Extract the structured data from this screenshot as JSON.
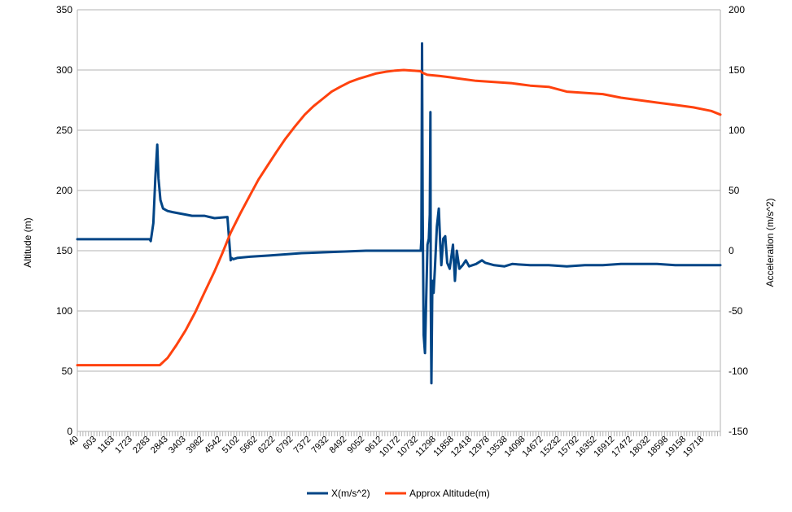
{
  "chart_data": {
    "type": "line",
    "title": "",
    "ylabel_left": "Altitude (m)",
    "ylabel_right": "Acceleration (m/s^2)",
    "ylim_left": [
      0,
      350
    ],
    "ylim_right": [
      -150,
      200
    ],
    "yticks_left": [
      "0",
      "50",
      "100",
      "150",
      "200",
      "250",
      "300",
      "350"
    ],
    "yticks_right": [
      "-150",
      "-100",
      "-50",
      "0",
      "50",
      "100",
      "150",
      "200"
    ],
    "x_tick_labels": [
      "40",
      "603",
      "1163",
      "1723",
      "2283",
      "2843",
      "3403",
      "3982",
      "4542",
      "5102",
      "5662",
      "6222",
      "6792",
      "7372",
      "7932",
      "8492",
      "9052",
      "9612",
      "10172",
      "10732",
      "11298",
      "11858",
      "12418",
      "12978",
      "13538",
      "14098",
      "14672",
      "15232",
      "15792",
      "16352",
      "16912",
      "17472",
      "18032",
      "18598",
      "19158",
      "19718"
    ],
    "xlim": [
      40,
      20000
    ],
    "grid": true,
    "legend_position": "bottom",
    "colors": {
      "accel": "#004586",
      "altitude": "#ff420e",
      "grid": "#b3b3b3",
      "axis": "#b3b3b3"
    },
    "series": [
      {
        "name": "X(m/s^2)",
        "axis": "right",
        "x": [
          40,
          1500,
          2200,
          2283,
          2320,
          2400,
          2460,
          2520,
          2560,
          2620,
          2700,
          2843,
          3000,
          3200,
          3403,
          3600,
          3982,
          4300,
          4700,
          4800,
          4830,
          4880,
          5000,
          5400,
          6000,
          7000,
          8000,
          9000,
          10000,
          10700,
          10720,
          10740,
          10760,
          10790,
          10830,
          10870,
          10910,
          10950,
          10980,
          11000,
          11010,
          11030,
          11060,
          11100,
          11140,
          11200,
          11260,
          11300,
          11340,
          11400,
          11460,
          11520,
          11600,
          11700,
          11760,
          11820,
          11900,
          12000,
          12100,
          12200,
          12418,
          12600,
          12700,
          12978,
          13300,
          13538,
          14098,
          14672,
          15232,
          15792,
          16352,
          16912,
          17472,
          18032,
          18598,
          19158,
          19718,
          20000
        ],
        "y": [
          9.5,
          9.5,
          9.5,
          9.5,
          8,
          23,
          60,
          88,
          60,
          42,
          35,
          33,
          32,
          31,
          30,
          29,
          29,
          27,
          28,
          -8,
          -6,
          -7,
          -6,
          -5,
          -4,
          -2,
          -1,
          0,
          0,
          0,
          10,
          172,
          30,
          -70,
          -85,
          -40,
          5,
          10,
          30,
          115,
          -40,
          -110,
          -25,
          -35,
          -15,
          20,
          35,
          8,
          -12,
          10,
          12,
          -10,
          -15,
          5,
          -25,
          0,
          -15,
          -12,
          -8,
          -13,
          -11,
          -8,
          -10,
          -12,
          -13,
          -11,
          -12,
          -12,
          -13,
          -12,
          -12,
          -11,
          -11,
          -11,
          -12,
          -12,
          -12,
          -12
        ]
      },
      {
        "name": "Approx Altitude(m)",
        "axis": "left",
        "x": [
          40,
          1000,
          2000,
          2600,
          2843,
          3100,
          3403,
          3700,
          3982,
          4300,
          4542,
          4800,
          5102,
          5400,
          5662,
          6000,
          6222,
          6500,
          6792,
          7100,
          7372,
          7700,
          7932,
          8200,
          8492,
          8800,
          9052,
          9300,
          9612,
          9900,
          10172,
          10450,
          10700,
          10732,
          10900,
          11298,
          11600,
          11858,
          12418,
          12978,
          13538,
          14098,
          14672,
          15232,
          15792,
          16352,
          16912,
          17472,
          18032,
          18598,
          19158,
          19718,
          20000
        ],
        "y": [
          55,
          55,
          55,
          55,
          61,
          71,
          84,
          99,
          115,
          133,
          148,
          165,
          181,
          196,
          209,
          223,
          232,
          243,
          253,
          263,
          270,
          277,
          282,
          286,
          290,
          293,
          295,
          297,
          298.5,
          299.5,
          300,
          299.5,
          299,
          298,
          296,
          295,
          294,
          293,
          291,
          290,
          289,
          287,
          286,
          282,
          281,
          280,
          277,
          275,
          273,
          271,
          269,
          266,
          263
        ]
      }
    ]
  }
}
